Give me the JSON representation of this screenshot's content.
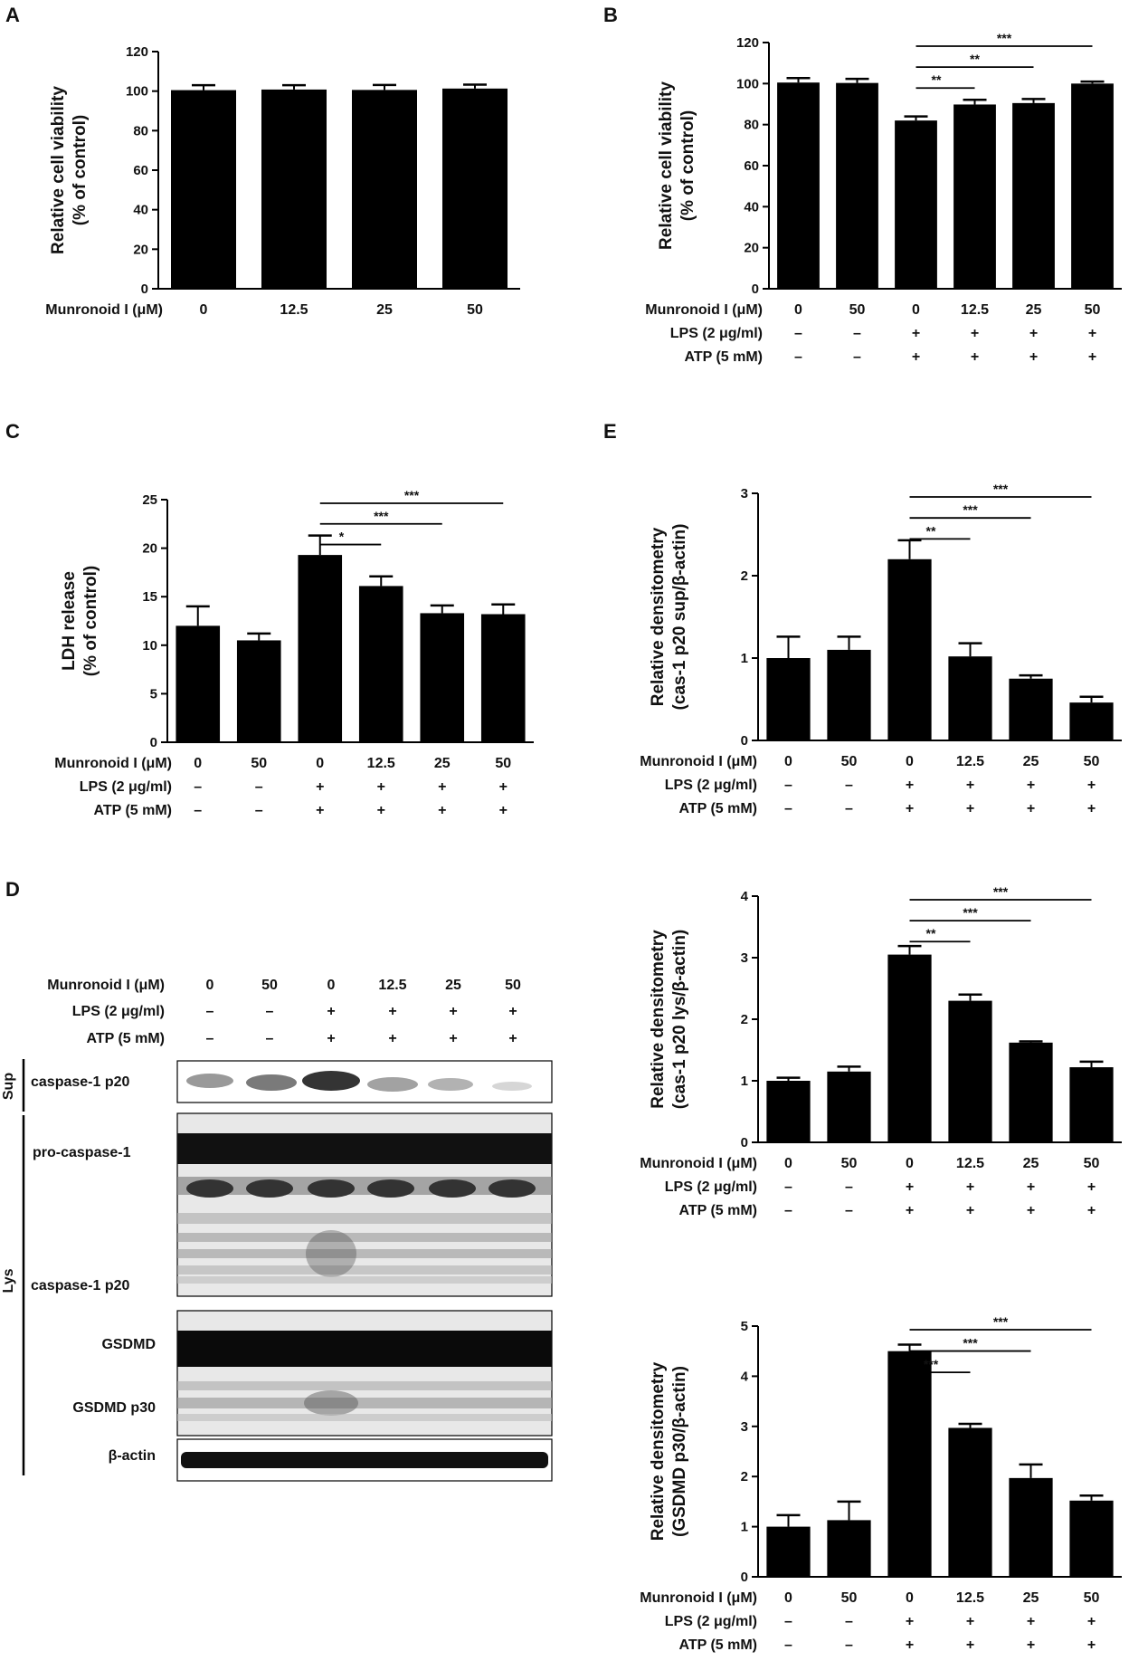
{
  "figure": {
    "conditions": {
      "munronoid_label": "Munronoid I (μM)",
      "lps_label": "LPS (2 μg/ml)",
      "atp_label": "ATP (5 mM)",
      "doses": [
        "0",
        "50",
        "0",
        "12.5",
        "25",
        "50"
      ],
      "lps": [
        "–",
        "–",
        "+",
        "+",
        "+",
        "+"
      ],
      "atp": [
        "–",
        "–",
        "+",
        "+",
        "+",
        "+"
      ]
    },
    "blot": {
      "panel_label": "D",
      "sup_label": "Sup",
      "lys_label": "Lys",
      "bands": [
        "caspase-1 p20",
        "pro-caspase-1",
        "caspase-1 p20",
        "GSDMD",
        "GSDMD p30",
        "β-actin"
      ]
    }
  },
  "chart_data": [
    {
      "panel": "A",
      "type": "bar",
      "categories": [
        "0",
        "12.5",
        "25",
        "50"
      ],
      "values": [
        100.5,
        100.8,
        100.6,
        101.3
      ],
      "errors": [
        2.5,
        2.2,
        2.5,
        2.0
      ],
      "ylabel": [
        "Relative cell viability",
        "(% of control)"
      ],
      "ylim": [
        0,
        120
      ],
      "yticks": [
        "0",
        "20",
        "40",
        "60",
        "80",
        "100",
        "120"
      ],
      "rows": [
        [
          "Munronoid I (μM)",
          "0",
          "12.5",
          "25",
          "50"
        ]
      ],
      "significance": [],
      "color": "#000000"
    },
    {
      "panel": "B",
      "type": "bar",
      "categories": [
        "0",
        "50",
        "0",
        "12.5",
        "25",
        "50"
      ],
      "values": [
        100.5,
        100.3,
        82.0,
        89.8,
        90.5,
        100.0
      ],
      "errors": [
        2.2,
        2.0,
        2.0,
        2.3,
        2.0,
        1.0
      ],
      "ylabel": [
        "Relative cell viability",
        "(% of control)"
      ],
      "ylim": [
        0,
        120
      ],
      "yticks": [
        "0",
        "20",
        "40",
        "60",
        "80",
        "100",
        "120"
      ],
      "rows": [
        [
          "Munronoid I (μM)",
          "0",
          "50",
          "0",
          "12.5",
          "25",
          "50"
        ],
        [
          "LPS (2 μg/ml)",
          "–",
          "–",
          "+",
          "+",
          "+",
          "+"
        ],
        [
          "ATP (5 mM)",
          "–",
          "–",
          "+",
          "+",
          "+",
          "+"
        ]
      ],
      "significance": [
        {
          "from": 2,
          "to": 3,
          "label": "**"
        },
        {
          "from": 2,
          "to": 4,
          "label": "**"
        },
        {
          "from": 2,
          "to": 5,
          "label": "***"
        }
      ],
      "color": "#000000"
    },
    {
      "panel": "C",
      "type": "bar",
      "categories": [
        "0",
        "50",
        "0",
        "12.5",
        "25",
        "50"
      ],
      "values": [
        12.0,
        10.5,
        19.3,
        16.1,
        13.3,
        13.2
      ],
      "errors": [
        2.0,
        0.7,
        2.0,
        1.0,
        0.8,
        1.0
      ],
      "ylabel": [
        "LDH release",
        "(% of control)"
      ],
      "ylim": [
        0,
        25
      ],
      "yticks": [
        "0",
        "5",
        "10",
        "15",
        "20",
        "25"
      ],
      "rows": [
        [
          "Munronoid I (μM)",
          "0",
          "50",
          "0",
          "12.5",
          "25",
          "50"
        ],
        [
          "LPS (2 μg/ml)",
          "–",
          "–",
          "+",
          "+",
          "+",
          "+"
        ],
        [
          "ATP (5 mM)",
          "–",
          "–",
          "+",
          "+",
          "+",
          "+"
        ]
      ],
      "significance": [
        {
          "from": 2,
          "to": 3,
          "label": "*"
        },
        {
          "from": 2,
          "to": 4,
          "label": "***"
        },
        {
          "from": 2,
          "to": 5,
          "label": "***"
        }
      ],
      "color": "#000000"
    },
    {
      "panel": "E",
      "type": "bar",
      "categories": [
        "0",
        "50",
        "0",
        "12.5",
        "25",
        "50"
      ],
      "values": [
        1.0,
        1.1,
        2.2,
        1.02,
        0.75,
        0.46
      ],
      "errors": [
        0.26,
        0.16,
        0.23,
        0.16,
        0.04,
        0.07
      ],
      "ylabel": [
        "Relative densitometry",
        "(cas-1 p20 sup/β-actin)"
      ],
      "ylim": [
        0,
        3
      ],
      "yticks": [
        "0",
        "1",
        "2",
        "3"
      ],
      "rows": [
        [
          "Munronoid I (μM)",
          "0",
          "50",
          "0",
          "12.5",
          "25",
          "50"
        ],
        [
          "LPS (2 μg/ml)",
          "–",
          "–",
          "+",
          "+",
          "+",
          "+"
        ],
        [
          "ATP (5 mM)",
          "–",
          "–",
          "+",
          "+",
          "+",
          "+"
        ]
      ],
      "significance": [
        {
          "from": 2,
          "to": 3,
          "label": "**"
        },
        {
          "from": 2,
          "to": 4,
          "label": "***"
        },
        {
          "from": 2,
          "to": 5,
          "label": "***"
        }
      ],
      "color": "#000000"
    },
    {
      "panel": "",
      "type": "bar",
      "categories": [
        "0",
        "50",
        "0",
        "12.5",
        "25",
        "50"
      ],
      "values": [
        1.0,
        1.15,
        3.05,
        2.3,
        1.62,
        1.22
      ],
      "errors": [
        0.05,
        0.08,
        0.14,
        0.1,
        0.02,
        0.09
      ],
      "ylabel": [
        "Relative densitometry",
        "(cas-1 p20 lys/β-actin)"
      ],
      "ylim": [
        0,
        4
      ],
      "yticks": [
        "0",
        "1",
        "2",
        "3",
        "4"
      ],
      "rows": [
        [
          "Munronoid I (μM)",
          "0",
          "50",
          "0",
          "12.5",
          "25",
          "50"
        ],
        [
          "LPS (2 μg/ml)",
          "–",
          "–",
          "+",
          "+",
          "+",
          "+"
        ],
        [
          "ATP (5 mM)",
          "–",
          "–",
          "+",
          "+",
          "+",
          "+"
        ]
      ],
      "significance": [
        {
          "from": 2,
          "to": 3,
          "label": "**"
        },
        {
          "from": 2,
          "to": 4,
          "label": "***"
        },
        {
          "from": 2,
          "to": 5,
          "label": "***"
        }
      ],
      "color": "#000000"
    },
    {
      "panel": "",
      "type": "bar",
      "categories": [
        "0",
        "50",
        "0",
        "12.5",
        "25",
        "50"
      ],
      "values": [
        1.0,
        1.13,
        4.5,
        2.97,
        1.97,
        1.52
      ],
      "errors": [
        0.23,
        0.37,
        0.13,
        0.08,
        0.27,
        0.1
      ],
      "ylabel": [
        "Relative densitometry",
        "(GSDMD p30/β-actin)"
      ],
      "ylim": [
        0,
        5
      ],
      "yticks": [
        "0",
        "1",
        "2",
        "3",
        "4",
        "5"
      ],
      "rows": [
        [
          "Munronoid I (μM)",
          "0",
          "50",
          "0",
          "12.5",
          "25",
          "50"
        ],
        [
          "LPS (2 μg/ml)",
          "–",
          "–",
          "+",
          "+",
          "+",
          "+"
        ],
        [
          "ATP (5 mM)",
          "–",
          "–",
          "+",
          "+",
          "+",
          "+"
        ]
      ],
      "significance": [
        {
          "from": 2,
          "to": 3,
          "label": "***"
        },
        {
          "from": 2,
          "to": 4,
          "label": "***"
        },
        {
          "from": 2,
          "to": 5,
          "label": "***"
        }
      ],
      "color": "#000000"
    }
  ]
}
